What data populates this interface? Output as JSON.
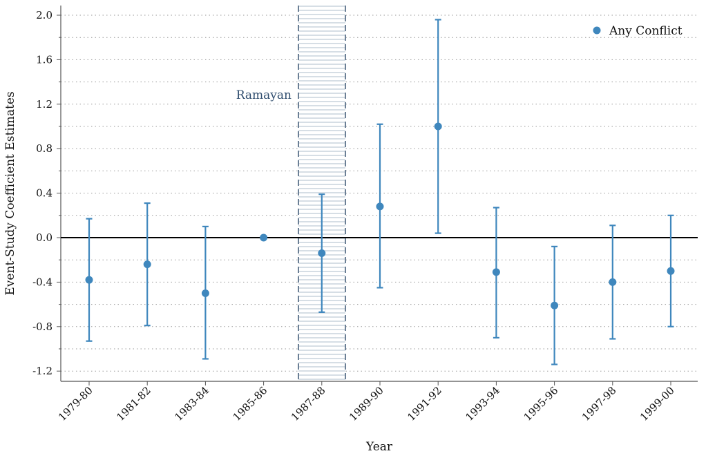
{
  "chart_data": {
    "type": "scatter",
    "title": "",
    "xlabel": "Year",
    "ylabel": "Event-Study Coefficient Estimates",
    "categories": [
      "1979-80",
      "1981-82",
      "1983-84",
      "1985-86",
      "1987-88",
      "1989-90",
      "1991-92",
      "1993-94",
      "1995-96",
      "1997-98",
      "1999-00"
    ],
    "y_ticks": [
      "2.0",
      "1.6",
      "1.2",
      "0.8",
      "0.4",
      "0.0",
      "-0.4",
      "-0.8",
      "-1.2"
    ],
    "ylim": [
      -1.29,
      2.07
    ],
    "grid": true,
    "legend_position": "top-right",
    "series": [
      {
        "name": "Any Conflict",
        "color": "#3f87bd",
        "values": [
          -0.38,
          -0.24,
          -0.5,
          0.0,
          -0.14,
          0.28,
          1.0,
          -0.31,
          -0.61,
          -0.4,
          -0.3
        ],
        "ci_low": [
          -0.93,
          -0.79,
          -1.09,
          0.0,
          -0.67,
          -0.45,
          0.04,
          -0.9,
          -1.14,
          -0.91,
          -0.8
        ],
        "ci_high": [
          0.17,
          0.31,
          0.1,
          0.0,
          0.39,
          1.02,
          1.96,
          0.27,
          -0.08,
          0.11,
          0.2
        ]
      }
    ],
    "annotations": [
      {
        "text": "Ramayan",
        "x_start_category": "1987-88",
        "shaded_band": true
      }
    ],
    "colors": {
      "marker": "#3f87bd",
      "band": "#6b7f95",
      "zero_line": "#000000",
      "grid": "#9a9a9a"
    }
  }
}
